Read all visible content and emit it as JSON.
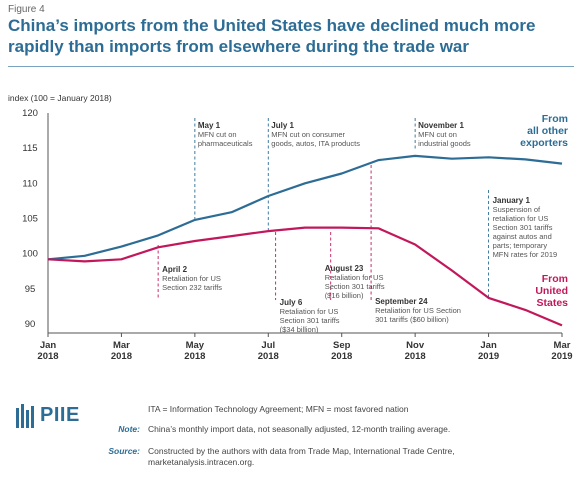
{
  "figure_label": "Figure 4",
  "title": "China’s imports from the United States have declined much more rapidly than imports from elsewhere during the trade war",
  "colors": {
    "title": "#2d6d95",
    "others_series": "#2d6d95",
    "us_series": "#c2185b",
    "annotation_text": "#555555"
  },
  "chart_data": {
    "type": "line",
    "ylabel": "index (100 = January 2018)",
    "ylim": [
      89,
      120
    ],
    "yticks": [
      90,
      95,
      100,
      105,
      110,
      115,
      120
    ],
    "x": [
      "2018-01",
      "2018-02",
      "2018-03",
      "2018-04",
      "2018-05",
      "2018-06",
      "2018-07",
      "2018-08",
      "2018-09",
      "2018-10",
      "2018-11",
      "2018-12",
      "2019-01",
      "2019-02",
      "2019-03"
    ],
    "xticks": [
      {
        "month": "Jan",
        "year": "2018"
      },
      {
        "month": "Mar",
        "year": "2018"
      },
      {
        "month": "May",
        "year": "2018"
      },
      {
        "month": "Jul",
        "year": "2018"
      },
      {
        "month": "Sep",
        "year": "2018"
      },
      {
        "month": "Nov",
        "year": "2018"
      },
      {
        "month": "Jan",
        "year": "2019"
      },
      {
        "month": "Mar",
        "year": "2019"
      }
    ],
    "series": [
      {
        "name": "From all other exporters",
        "label_lines": [
          "From",
          "all other",
          "exporters"
        ],
        "color": "#2d6d95",
        "values": [
          99.2,
          99.7,
          101.0,
          102.6,
          104.8,
          105.9,
          108.2,
          110.0,
          111.4,
          113.3,
          113.9,
          113.5,
          113.7,
          113.4,
          112.8
        ]
      },
      {
        "name": "From United States",
        "label_lines": [
          "From",
          "United",
          "States"
        ],
        "color": "#c2185b",
        "values": [
          99.2,
          98.9,
          99.2,
          100.9,
          101.8,
          102.5,
          103.2,
          103.7,
          103.7,
          103.6,
          101.3,
          97.6,
          93.7,
          92.0,
          89.8
        ]
      }
    ],
    "annotations": [
      {
        "month_index": 4.0,
        "title": "May 1",
        "lines": [
          "MFN cut on",
          "pharmaceuticals"
        ],
        "line_color": "#2d6d95"
      },
      {
        "month_index": 6.0,
        "title": "July 1",
        "lines": [
          "MFN cut on consumer",
          "goods, autos, ITA products"
        ],
        "line_color": "#2d6d95"
      },
      {
        "month_index": 10.0,
        "title": "November 1",
        "lines": [
          "MFN cut on",
          "industrial goods"
        ],
        "line_color": "#2d6d95"
      },
      {
        "month_index": 12.0,
        "title": "January 1",
        "lines": [
          "Suspension of",
          "retaliation for US",
          "Section 301 tariffs",
          "against autos and",
          "parts; temporary",
          "MFN rates for 2019"
        ],
        "line_color": "#2d6d95"
      },
      {
        "month_index": 3.0,
        "title": "April 2",
        "lines": [
          "Retaliation for US",
          "Section 232 tariffs"
        ],
        "line_color": "#c2185b"
      },
      {
        "month_index": 6.2,
        "title": "July 6",
        "lines": [
          "Retaliation for US",
          "Section 301 tariffs",
          "($34 billion)"
        ],
        "line_color": "#c2185b"
      },
      {
        "month_index": 7.7,
        "title": "August 23",
        "lines": [
          "Retaliation for US",
          "Section 301 tariffs",
          "($16 billion)"
        ],
        "line_color": "#c2185b"
      },
      {
        "month_index": 8.8,
        "title": "September 24",
        "lines": [
          "Retaliation for US Section",
          "301 tariffs ($60 billion)"
        ],
        "line_color": "#c2185b"
      }
    ]
  },
  "footer": {
    "logo_text": "PIIE",
    "abbrev_text": "ITA = Information Technology Agreement; MFN = most favored nation",
    "note_label": "Note:",
    "note_text": "China’s monthly import data, not seasonally adjusted, 12-month trailing average.",
    "source_label": "Source:",
    "source_lines": [
      "Constructed by the authors with data from Trade Map, International Trade Centre,",
      "marketanalysis.intracen.org."
    ]
  }
}
